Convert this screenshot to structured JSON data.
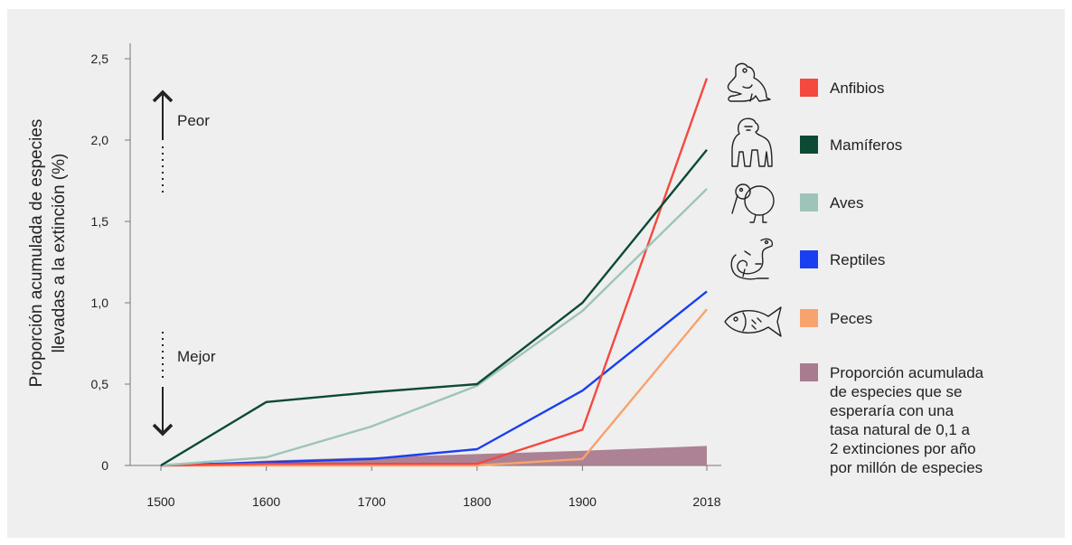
{
  "chart_data": {
    "type": "line",
    "ylabel_lines": [
      "Proporción acumulada de especies",
      "llevadas a la extinción (%)"
    ],
    "x": [
      "1500",
      "1600",
      "1700",
      "1800",
      "1900",
      "2018"
    ],
    "x_values": [
      1500,
      1600,
      1700,
      1800,
      1900,
      2018
    ],
    "yticks": [
      "0",
      "0,5",
      "1,0",
      "1,5",
      "2,0",
      "2,5"
    ],
    "ylim": [
      0,
      2.5
    ],
    "grid": false,
    "series": [
      {
        "name": "Anfibios",
        "color": "#f5483e",
        "icon": "frog-icon",
        "values": [
          0,
          0.01,
          0.01,
          0.01,
          0.22,
          2.38
        ]
      },
      {
        "name": "Mamíferos",
        "color": "#0d4a33",
        "icon": "gorilla-icon",
        "values": [
          0,
          0.39,
          0.45,
          0.5,
          1.0,
          1.94
        ]
      },
      {
        "name": "Aves",
        "color": "#9ec4ba",
        "icon": "bird-icon",
        "values": [
          0,
          0.05,
          0.24,
          0.49,
          0.95,
          1.7
        ]
      },
      {
        "name": "Reptiles",
        "color": "#1a3ff0",
        "icon": "lizard-icon",
        "values": [
          0,
          0.02,
          0.04,
          0.1,
          0.46,
          1.07
        ]
      },
      {
        "name": "Peces",
        "color": "#f7a36e",
        "icon": "fish-icon",
        "values": [
          0,
          0,
          0,
          0,
          0.04,
          0.96
        ]
      }
    ],
    "band": {
      "name_lines": [
        "Proporción acumulada",
        "de especies que se",
        "esperaría con una",
        "tasa natural de 0,1 a",
        "2 extinciones por año",
        "por millón de especies"
      ],
      "color": "#a97b8e",
      "lower": [
        0,
        0,
        0,
        0,
        0,
        0
      ],
      "upper": [
        0,
        0.03,
        0.05,
        0.07,
        0.09,
        0.12
      ]
    },
    "annotations": {
      "worse": "Peor",
      "better": "Mejor"
    },
    "legend_position": "right"
  }
}
